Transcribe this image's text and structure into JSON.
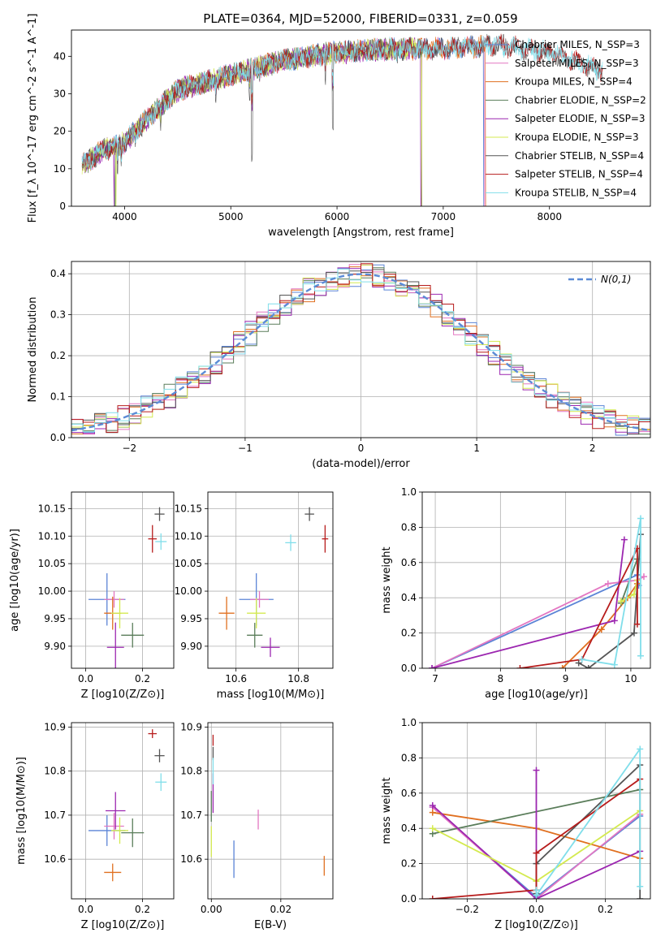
{
  "figure_title": "PLATE=0364, MJD=52000, FIBERID=0331, z=0.059",
  "colors": {
    "Chabrier MILES": "#5b84d6",
    "Salpeter MILES": "#e377c2",
    "Kroupa MILES": "#e07020",
    "Chabrier ELODIE": "#5a7d5a",
    "Salpeter ELODIE": "#9c27b0",
    "Kroupa ELODIE": "#d4ea50",
    "Chabrier STELIB": "#555555",
    "Salpeter STELIB": "#b71c1c",
    "Kroupa STELIB": "#80deea",
    "gaussian": "#5b8bd6"
  },
  "chart_data": [
    {
      "id": "spectrum",
      "type": "line",
      "xlabel": "wavelength [Angstrom, rest frame]",
      "ylabel": "Flux [f_λ 10^-17 erg cm^-2 s^-1 A^-1]",
      "xlim": [
        3500,
        8950
      ],
      "ylim": [
        0,
        47
      ],
      "xticks": [
        4000,
        5000,
        6000,
        7000,
        8000
      ],
      "yticks": [
        0,
        10,
        20,
        30,
        40
      ],
      "grid": false,
      "legend_position": "right",
      "continuum": [
        [
          3600,
          11
        ],
        [
          3800,
          15
        ],
        [
          4000,
          17
        ],
        [
          4200,
          23
        ],
        [
          4500,
          31
        ],
        [
          5000,
          35
        ],
        [
          5500,
          39
        ],
        [
          6000,
          41
        ],
        [
          6500,
          42
        ],
        [
          7000,
          42
        ],
        [
          7500,
          43
        ],
        [
          8000,
          41
        ],
        [
          8400,
          37
        ],
        [
          8500,
          36
        ]
      ],
      "series": [
        {
          "name": "Chabrier MILES, N_SSP=3",
          "xmax": 7400,
          "dropouts": [
            7380
          ]
        },
        {
          "name": "Salpeter MILES, N_SSP=3",
          "xmax": 7400,
          "dropouts": [
            7390
          ]
        },
        {
          "name": "Kroupa MILES, N_SSP=4",
          "xmax": 7400,
          "dropouts": [
            7400
          ]
        },
        {
          "name": "Chabrier ELODIE, N_SSP=2",
          "xmax": 6800,
          "dropouts": [
            3910,
            6800
          ]
        },
        {
          "name": "Salpeter ELODIE, N_SSP=3",
          "xmax": 6800,
          "dropouts": [
            3900,
            6790
          ]
        },
        {
          "name": "Kroupa ELODIE, N_SSP=3",
          "xmax": 6800,
          "dropouts": [
            3920,
            6795
          ]
        },
        {
          "name": "Chabrier STELIB, N_SSP=4",
          "xmax": 8500,
          "dropouts": []
        },
        {
          "name": "Salpeter STELIB, N_SSP=4",
          "xmax": 8500,
          "dropouts": []
        },
        {
          "name": "Kroupa STELIB, N_SSP=4",
          "xmax": 8500,
          "dropouts": []
        }
      ]
    },
    {
      "id": "residuals",
      "type": "line",
      "xlabel": "(data-model)/error",
      "ylabel": "Normed distribution",
      "xlim": [
        -2.5,
        2.5
      ],
      "ylim": [
        0,
        0.43
      ],
      "xticks": [
        -2,
        -1,
        0,
        1,
        2
      ],
      "yticks": [
        0.0,
        0.1,
        0.2,
        0.3,
        0.4
      ],
      "grid": true,
      "legend_position": "top-right",
      "legend": "N(0,1)",
      "bin_width": 0.1
    },
    {
      "id": "age_vs_Z",
      "type": "scatter",
      "xlabel": "Z [log10(Z/Z⊙)]",
      "ylabel": "age  [log10(age/yr)]",
      "xlim": [
        -0.05,
        0.31
      ],
      "ylim": [
        9.86,
        10.18
      ],
      "xticks": [
        0.0,
        0.2
      ],
      "yticks": [
        9.9,
        9.95,
        10.0,
        10.05,
        10.1,
        10.15
      ],
      "grid": true,
      "points": [
        {
          "series": "Chabrier MILES",
          "x": 0.075,
          "y": 9.985,
          "xerr": 0.13,
          "yerr": 0.095
        },
        {
          "series": "Salpeter MILES",
          "x": 0.1,
          "y": 9.985,
          "xerr": 0.07,
          "yerr": 0.03
        },
        {
          "series": "Kroupa MILES",
          "x": 0.095,
          "y": 9.96,
          "xerr": 0.06,
          "yerr": 0.06
        },
        {
          "series": "Chabrier ELODIE",
          "x": 0.165,
          "y": 9.92,
          "xerr": 0.08,
          "yerr": 0.045
        },
        {
          "series": "Salpeter ELODIE",
          "x": 0.105,
          "y": 9.898,
          "xerr": 0.06,
          "yerr": 0.09
        },
        {
          "series": "Kroupa ELODIE",
          "x": 0.12,
          "y": 9.96,
          "xerr": 0.06,
          "yerr": 0.055
        },
        {
          "series": "Chabrier STELIB",
          "x": 0.26,
          "y": 10.14,
          "xerr": 0.035,
          "yerr": 0.025
        },
        {
          "series": "Salpeter STELIB",
          "x": 0.235,
          "y": 10.095,
          "xerr": 0.03,
          "yerr": 0.05
        },
        {
          "series": "Kroupa STELIB",
          "x": 0.265,
          "y": 10.09,
          "xerr": 0.04,
          "yerr": 0.03
        }
      ]
    },
    {
      "id": "age_vs_mass",
      "type": "scatter",
      "xlabel": "mass [log10(M/M⊙)]",
      "ylabel": "",
      "xlim": [
        10.51,
        10.91
      ],
      "ylim": [
        9.86,
        10.18
      ],
      "xticks": [
        10.6,
        10.8
      ],
      "yticks": [
        9.9,
        9.95,
        10.0,
        10.05,
        10.1,
        10.15
      ],
      "grid": true,
      "points": [
        {
          "series": "Chabrier MILES",
          "x": 10.665,
          "y": 9.985,
          "xerr": 0.11,
          "yerr": 0.095
        },
        {
          "series": "Salpeter MILES",
          "x": 10.675,
          "y": 9.985,
          "xerr": 0.06,
          "yerr": 0.03
        },
        {
          "series": "Kroupa MILES",
          "x": 10.57,
          "y": 9.96,
          "xerr": 0.05,
          "yerr": 0.06
        },
        {
          "series": "Chabrier ELODIE",
          "x": 10.66,
          "y": 9.92,
          "xerr": 0.05,
          "yerr": 0.045
        },
        {
          "series": "Salpeter ELODIE",
          "x": 10.71,
          "y": 9.898,
          "xerr": 0.06,
          "yerr": 0.035
        },
        {
          "series": "Kroupa ELODIE",
          "x": 10.665,
          "y": 9.96,
          "xerr": 0.06,
          "yerr": 0.055
        },
        {
          "series": "Chabrier STELIB",
          "x": 10.835,
          "y": 10.14,
          "xerr": 0.03,
          "yerr": 0.025
        },
        {
          "series": "Salpeter STELIB",
          "x": 10.885,
          "y": 10.095,
          "xerr": 0.02,
          "yerr": 0.05
        },
        {
          "series": "Kroupa STELIB",
          "x": 10.775,
          "y": 10.088,
          "xerr": 0.035,
          "yerr": 0.03
        }
      ]
    },
    {
      "id": "massweight_vs_age",
      "type": "line",
      "xlabel": "age  [log10(age/yr)]",
      "ylabel": "mass weight",
      "xlim": [
        6.8,
        10.3
      ],
      "ylim": [
        0,
        1
      ],
      "xticks": [
        7,
        8,
        9,
        10
      ],
      "yticks": [
        0.0,
        0.2,
        0.4,
        0.6,
        0.8,
        1.0
      ],
      "grid": true,
      "series": [
        {
          "name": "Chabrier MILES",
          "points": [
            [
              6.95,
              0.0
            ],
            [
              10.1,
              0.53
            ],
            [
              10.12,
              0.47
            ]
          ]
        },
        {
          "name": "Salpeter MILES",
          "points": [
            [
              6.95,
              0.0
            ],
            [
              9.65,
              0.48
            ],
            [
              10.1,
              0.5
            ],
            [
              10.2,
              0.52
            ]
          ]
        },
        {
          "name": "Kroupa MILES",
          "points": [
            [
              8.95,
              0.0
            ],
            [
              9.55,
              0.22
            ],
            [
              9.95,
              0.4
            ],
            [
              10.1,
              0.48
            ]
          ]
        },
        {
          "name": "Chabrier ELODIE",
          "points": [
            [
              9.85,
              0.37
            ],
            [
              10.1,
              0.62
            ]
          ]
        },
        {
          "name": "Salpeter ELODIE",
          "points": [
            [
              6.95,
              0.0
            ],
            [
              9.75,
              0.27
            ],
            [
              9.9,
              0.73
            ]
          ]
        },
        {
          "name": "Kroupa ELODIE",
          "points": [
            [
              9.85,
              0.38
            ],
            [
              10.05,
              0.42
            ],
            [
              10.1,
              0.5
            ]
          ]
        },
        {
          "name": "Chabrier STELIB",
          "points": [
            [
              9.2,
              0.03
            ],
            [
              9.35,
              0.0
            ],
            [
              10.05,
              0.2
            ],
            [
              10.15,
              0.76
            ]
          ]
        },
        {
          "name": "Salpeter STELIB",
          "points": [
            [
              8.3,
              0.0
            ],
            [
              9.25,
              0.05
            ],
            [
              10.1,
              0.68
            ],
            [
              10.1,
              0.25
            ]
          ]
        },
        {
          "name": "Kroupa STELIB",
          "points": [
            [
              9.25,
              0.05
            ],
            [
              9.75,
              0.02
            ],
            [
              10.15,
              0.85
            ],
            [
              10.15,
              0.07
            ]
          ]
        }
      ]
    },
    {
      "id": "mass_vs_Z",
      "type": "scatter",
      "xlabel": "Z [log10(Z/Z⊙)]",
      "ylabel": "mass [log10(M/M⊙)]",
      "xlim": [
        -0.05,
        0.31
      ],
      "ylim": [
        10.51,
        10.91
      ],
      "xticks": [
        0.0,
        0.2
      ],
      "yticks": [
        10.6,
        10.7,
        10.8,
        10.9
      ],
      "grid": true,
      "points": [
        {
          "series": "Chabrier MILES",
          "x": 0.075,
          "y": 10.665,
          "xerr": 0.13,
          "yerr": 0.07
        },
        {
          "series": "Salpeter MILES",
          "x": 0.1,
          "y": 10.675,
          "xerr": 0.07,
          "yerr": 0.06
        },
        {
          "series": "Kroupa MILES",
          "x": 0.095,
          "y": 10.57,
          "xerr": 0.06,
          "yerr": 0.04
        },
        {
          "series": "Chabrier ELODIE",
          "x": 0.165,
          "y": 10.66,
          "xerr": 0.08,
          "yerr": 0.065
        },
        {
          "series": "Salpeter ELODIE",
          "x": 0.105,
          "y": 10.71,
          "xerr": 0.07,
          "yerr": 0.085
        },
        {
          "series": "Kroupa ELODIE",
          "x": 0.12,
          "y": 10.665,
          "xerr": 0.06,
          "yerr": 0.06
        },
        {
          "series": "Chabrier STELIB",
          "x": 0.26,
          "y": 10.835,
          "xerr": 0.035,
          "yerr": 0.03
        },
        {
          "series": "Salpeter STELIB",
          "x": 0.235,
          "y": 10.885,
          "xerr": 0.03,
          "yerr": 0.02
        },
        {
          "series": "Kroupa STELIB",
          "x": 0.265,
          "y": 10.775,
          "xerr": 0.04,
          "yerr": 0.04
        }
      ]
    },
    {
      "id": "mass_vs_EBV",
      "type": "scatter",
      "xlabel": "E(B-V)",
      "ylabel": "",
      "xlim": [
        -0.001,
        0.035
      ],
      "ylim": [
        10.51,
        10.91
      ],
      "xticks": [
        0.0,
        0.02
      ],
      "yticks": [
        10.6,
        10.7,
        10.8,
        10.9
      ],
      "grid": true,
      "points": [
        {
          "series": "Chabrier MILES",
          "x": 0.0065,
          "y": 10.6,
          "xerr": 0,
          "yerr": 0.085
        },
        {
          "series": "Salpeter MILES",
          "x": 0.0135,
          "y": 10.69,
          "xerr": 0,
          "yerr": 0.045
        },
        {
          "series": "Kroupa MILES",
          "x": 0.0325,
          "y": 10.585,
          "xerr": 0,
          "yerr": 0.045
        },
        {
          "series": "Chabrier ELODIE",
          "x": 0.0,
          "y": 10.72,
          "xerr": 0,
          "yerr": 0.07
        },
        {
          "series": "Salpeter ELODIE",
          "x": 0.0005,
          "y": 10.75,
          "xerr": 0,
          "yerr": 0.09
        },
        {
          "series": "Kroupa ELODIE",
          "x": 0.0,
          "y": 10.64,
          "xerr": 0,
          "yerr": 0.07
        },
        {
          "series": "Chabrier STELIB",
          "x": 0.0005,
          "y": 10.84,
          "xerr": 0,
          "yerr": 0.03
        },
        {
          "series": "Salpeter STELIB",
          "x": 0.0005,
          "y": 10.87,
          "xerr": 0,
          "yerr": 0.025
        },
        {
          "series": "Kroupa STELIB",
          "x": 0.0005,
          "y": 10.8,
          "xerr": 0,
          "yerr": 0.06
        }
      ]
    },
    {
      "id": "massweight_vs_Z",
      "type": "line",
      "xlabel": "Z [log10(Z/Z⊙)]",
      "ylabel": "mass weight",
      "xlim": [
        -0.33,
        0.33
      ],
      "ylim": [
        0,
        1
      ],
      "xticks": [
        -0.2,
        0.0,
        0.2
      ],
      "yticks": [
        0.0,
        0.2,
        0.4,
        0.6,
        0.8,
        1.0
      ],
      "grid": true,
      "series": [
        {
          "name": "Chabrier MILES",
          "points": [
            [
              -0.3,
              0.52
            ],
            [
              0.0,
              0.01
            ],
            [
              0.3,
              0.47
            ]
          ]
        },
        {
          "name": "Salpeter MILES",
          "points": [
            [
              -0.3,
              0.52
            ],
            [
              0.0,
              0.0
            ],
            [
              0.3,
              0.48
            ]
          ]
        },
        {
          "name": "Kroupa MILES",
          "points": [
            [
              -0.3,
              0.49
            ],
            [
              0.0,
              0.4
            ],
            [
              0.3,
              0.23
            ]
          ]
        },
        {
          "name": "Chabrier ELODIE",
          "points": [
            [
              -0.3,
              0.37
            ],
            [
              0.3,
              0.62
            ]
          ]
        },
        {
          "name": "Salpeter ELODIE",
          "points": [
            [
              -0.3,
              0.53
            ],
            [
              0.0,
              0.0
            ],
            [
              0.0,
              0.73
            ],
            [
              0.0,
              0.0
            ],
            [
              0.3,
              0.27
            ]
          ]
        },
        {
          "name": "Kroupa ELODIE",
          "points": [
            [
              -0.3,
              0.4
            ],
            [
              0.0,
              0.1
            ],
            [
              0.3,
              0.5
            ]
          ]
        },
        {
          "name": "Chabrier STELIB",
          "points": [
            [
              0.0,
              0.03
            ],
            [
              0.0,
              0.2
            ],
            [
              0.3,
              0.76
            ],
            [
              0.3,
              0.0
            ]
          ]
        },
        {
          "name": "Salpeter STELIB",
          "points": [
            [
              -0.3,
              0.0
            ],
            [
              0.0,
              0.05
            ],
            [
              0.0,
              0.26
            ],
            [
              0.3,
              0.68
            ]
          ]
        },
        {
          "name": "Kroupa STELIB",
          "points": [
            [
              0.0,
              0.05
            ],
            [
              0.0,
              0.02
            ],
            [
              0.3,
              0.85
            ],
            [
              0.3,
              0.07
            ]
          ]
        }
      ]
    }
  ]
}
